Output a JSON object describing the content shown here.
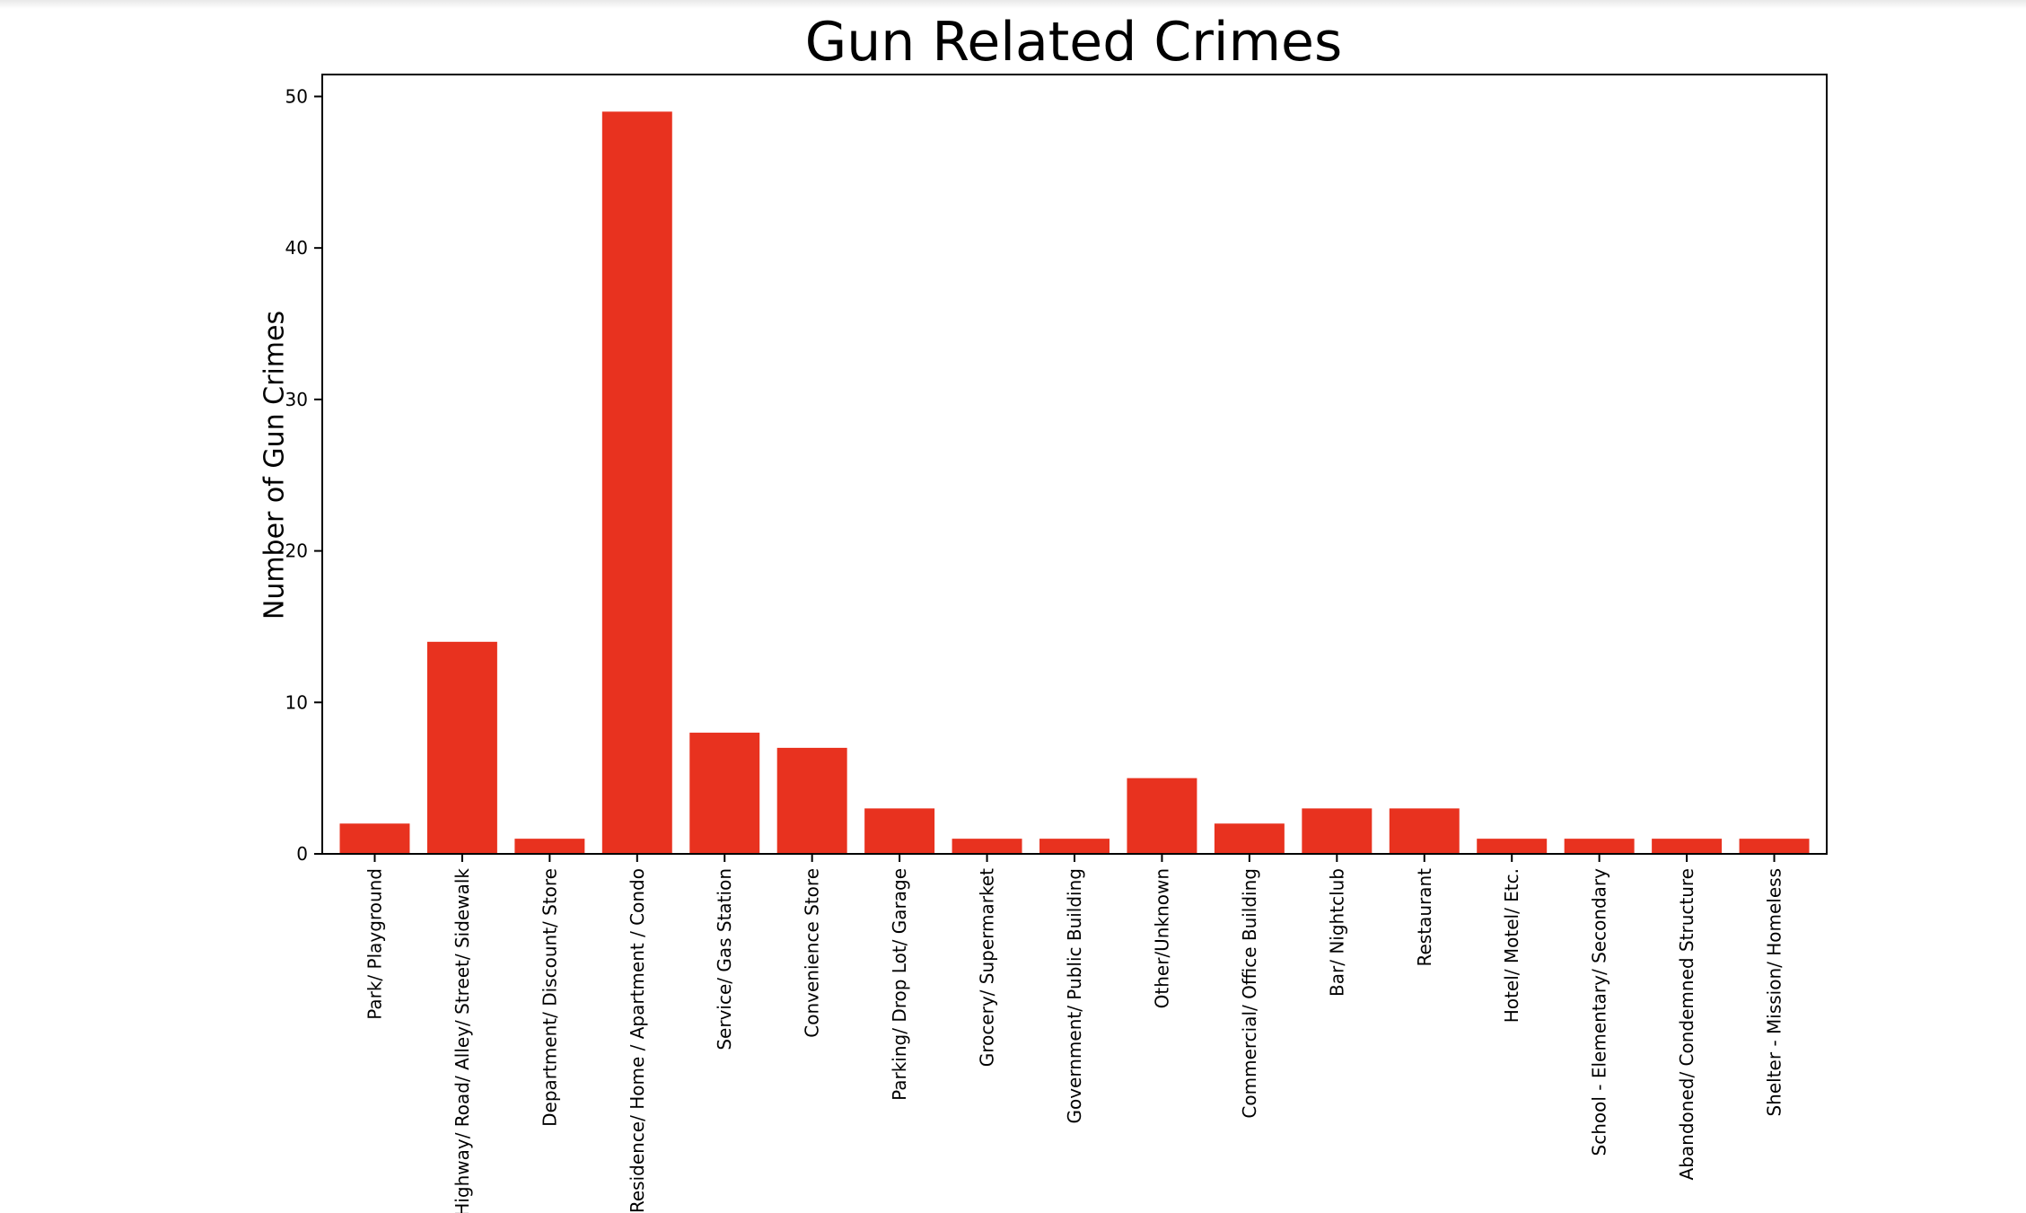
{
  "chart_data": {
    "type": "bar",
    "title": "Gun Related Crimes",
    "xlabel": "",
    "ylabel": "Number of Gun Crimes",
    "categories": [
      "Park/ Playground",
      "Highway/ Road/ Alley/ Street/ Sidewalk",
      "Department/ Discount/ Store",
      "Residence/ Home / Apartment / Condo",
      "Service/ Gas Station",
      "Convenience Store",
      "Parking/ Drop Lot/ Garage",
      "Grocery/ Supermarket",
      "Government/ Public Building",
      "Other/Unknown",
      "Commercial/ Office Building",
      "Bar/ Nightclub",
      "Restaurant",
      "Hotel/ Motel/ Etc.",
      "School - Elementary/ Secondary",
      "Abandoned/ Condemned Structure",
      "Shelter - Mission/ Homeless"
    ],
    "values": [
      2,
      14,
      1,
      49,
      8,
      7,
      3,
      1,
      1,
      5,
      2,
      3,
      3,
      1,
      1,
      1,
      1
    ],
    "ylim": [
      0,
      51.45
    ],
    "yticks": [
      0,
      10,
      20,
      30,
      40,
      50
    ],
    "bar_color": "#e8321f",
    "grid": false,
    "legend": "none"
  }
}
